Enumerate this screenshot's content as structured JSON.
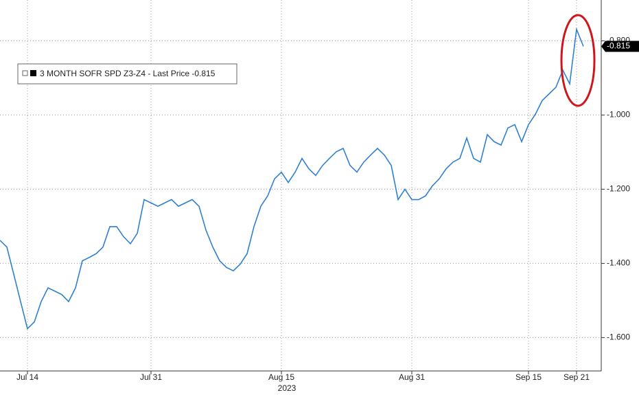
{
  "chart_data": {
    "type": "line",
    "categories": [
      null,
      null,
      null,
      null,
      "Jul 14",
      null,
      null,
      null,
      null,
      null,
      null,
      null,
      null,
      null,
      null,
      null,
      null,
      null,
      null,
      null,
      null,
      null,
      "Jul 31",
      null,
      null,
      null,
      null,
      null,
      null,
      null,
      null,
      null,
      null,
      null,
      null,
      null,
      null,
      null,
      null,
      null,
      null,
      "Aug 15",
      null,
      null,
      null,
      null,
      null,
      null,
      null,
      null,
      null,
      null,
      null,
      null,
      null,
      null,
      null,
      null,
      null,
      null,
      "Aug 31",
      null,
      null,
      null,
      null,
      null,
      null,
      null,
      null,
      null,
      null,
      null,
      null,
      null,
      null,
      null,
      null,
      "Sep 15",
      null,
      null,
      null,
      null,
      null,
      null,
      "Sep 21",
      null
    ],
    "x_axis_label": "2023",
    "series": [
      {
        "name": "3 MONTH SOFR SPD Z3-Z4 - Last Price -0.815",
        "color": "#2f7fd0",
        "values": [
          -1.338,
          -1.356,
          -1.429,
          -1.503,
          -1.576,
          -1.558,
          -1.503,
          -1.466,
          -1.475,
          -1.484,
          -1.503,
          -1.466,
          -1.393,
          -1.384,
          -1.374,
          -1.356,
          -1.301,
          -1.301,
          -1.328,
          -1.347,
          -1.319,
          -1.228,
          -1.237,
          -1.246,
          -1.237,
          -1.228,
          -1.246,
          -1.237,
          -1.228,
          -1.246,
          -1.31,
          -1.356,
          -1.393,
          -1.411,
          -1.42,
          -1.402,
          -1.374,
          -1.301,
          -1.246,
          -1.218,
          -1.172,
          -1.154,
          -1.182,
          -1.154,
          -1.117,
          -1.145,
          -1.163,
          -1.136,
          -1.117,
          -1.099,
          -1.09,
          -1.136,
          -1.154,
          -1.127,
          -1.108,
          -1.09,
          -1.108,
          -1.136,
          -1.228,
          -1.2,
          -1.228,
          -1.228,
          -1.218,
          -1.191,
          -1.172,
          -1.145,
          -1.127,
          -1.117,
          -1.062,
          -1.117,
          -1.127,
          -1.053,
          -1.072,
          -1.081,
          -1.035,
          -1.026,
          -1.072,
          -1.026,
          -0.998,
          -0.961,
          -0.943,
          -0.925,
          -0.879,
          -0.916,
          -0.769,
          -0.815
        ]
      }
    ],
    "last_price": -0.815,
    "ylim": [
      -1.69,
      -0.69
    ],
    "yticks": [
      {
        "value": -1.6,
        "label": "-1.600"
      },
      {
        "value": -1.4,
        "label": "-1.400"
      },
      {
        "value": -1.2,
        "label": "-1.200"
      },
      {
        "value": -1.0,
        "label": "-1.000"
      },
      {
        "value": -0.8,
        "label": "-0.800"
      }
    ],
    "grid": true
  }
}
